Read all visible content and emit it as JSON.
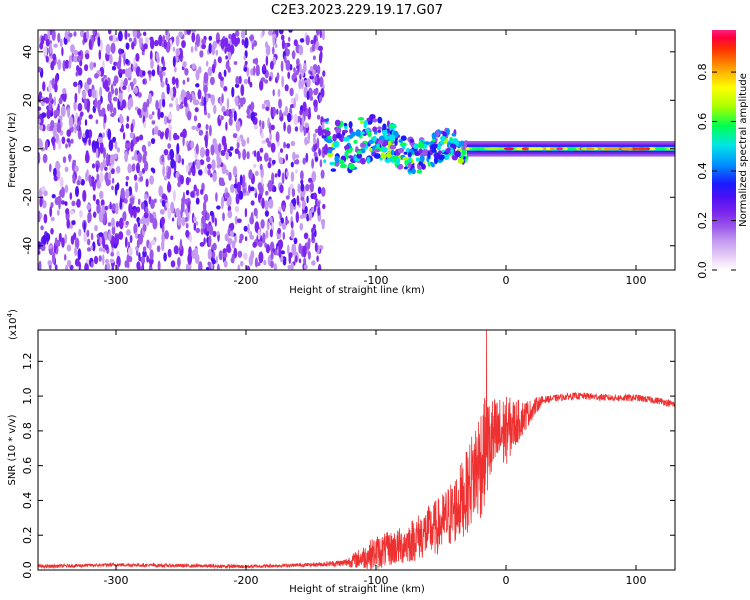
{
  "chart_data": [
    {
      "type": "heatmap",
      "title": "C2E3.2023.229.19.17.G07",
      "xlabel": "Height of straight line (km)",
      "ylabel": "Frequency (Hz)",
      "xlim": [
        -360,
        130
      ],
      "ylim": [
        -50,
        49
      ],
      "x_ticks": [
        -300,
        -200,
        -100,
        0,
        100
      ],
      "y_ticks": [
        -40,
        -20,
        0,
        20,
        40
      ],
      "colorbar": {
        "label": "Normalized spectral amplitude",
        "range": [
          0.0,
          0.97
        ],
        "ticks": [
          "0.0",
          "0.2",
          "0.4",
          "0.6",
          "0.8"
        ],
        "tick_values": [
          0.0,
          0.2,
          0.4,
          0.6,
          0.8
        ]
      },
      "colors": [
        "#ffffff",
        "#e6cbf6",
        "#c49bf0",
        "#9a57ea",
        "#7c25ee",
        "#4f10f4",
        "#1a1aff",
        "#0090ff",
        "#00e5e5",
        "#00ff50",
        "#a8ff00",
        "#ffff00",
        "#ffa000",
        "#ff3000",
        "#ff0040",
        "#ff2080"
      ],
      "regions": [
        {
          "x": [
            -360,
            -140
          ],
          "y": [
            -50,
            49
          ],
          "description": "noise",
          "amplitude": [
            0.05,
            0.25
          ]
        },
        {
          "x": [
            -140,
            -30
          ],
          "y": [
            -12,
            14
          ],
          "description": "scattered signal",
          "amplitude": [
            0.3,
            0.6
          ]
        },
        {
          "x": [
            -30,
            130
          ],
          "y": [
            -3,
            3
          ],
          "description": "steady carrier",
          "amplitude": [
            0.5,
            0.97
          ]
        }
      ]
    },
    {
      "type": "line",
      "xlabel": "Height of straight line (km)",
      "ylabel": "SNR (10 * v/v)",
      "y_multiplier": "(x10",
      "y_multiplier_exp": "4",
      "y_multiplier_close": ")",
      "xlim": [
        -360,
        130
      ],
      "ylim": [
        0,
        1.38
      ],
      "x_ticks": [
        -300,
        -200,
        -100,
        0,
        100
      ],
      "y_ticks": [
        0.0,
        0.2,
        0.4,
        0.6,
        0.8,
        1.0,
        1.2
      ],
      "y_tick_labels": [
        "0.0",
        "0.2",
        "0.4",
        "0.6",
        "0.8",
        "1.0",
        "1.2"
      ],
      "line_color": "#ee3030",
      "series": [
        {
          "x": [
            -360,
            -300,
            -200,
            -150,
            -125,
            -115,
            -100,
            -90,
            -80,
            -70,
            -60,
            -50,
            -40,
            -30,
            -25,
            -20,
            -15,
            -10,
            0,
            10,
            20,
            25,
            30,
            40,
            50,
            60,
            80,
            100,
            110,
            120,
            130
          ],
          "values": [
            0.02,
            0.03,
            0.02,
            0.03,
            0.04,
            0.06,
            0.1,
            0.12,
            0.14,
            0.18,
            0.22,
            0.26,
            0.34,
            0.45,
            0.55,
            0.62,
            0.7,
            0.75,
            0.8,
            0.86,
            0.92,
            0.96,
            0.98,
            0.99,
            1.0,
            1.0,
            0.99,
            0.99,
            0.98,
            0.97,
            0.95
          ],
          "spread": [
            0.01,
            0.01,
            0.01,
            0.01,
            0.02,
            0.05,
            0.1,
            0.1,
            0.11,
            0.13,
            0.15,
            0.17,
            0.2,
            0.24,
            0.28,
            0.35,
            0.3,
            0.25,
            0.2,
            0.12,
            0.06,
            0.04,
            0.02,
            0.02,
            0.02,
            0.02,
            0.02,
            0.02,
            0.02,
            0.02,
            0.02
          ]
        }
      ],
      "peak": {
        "x": -15,
        "value": 1.38
      }
    }
  ]
}
